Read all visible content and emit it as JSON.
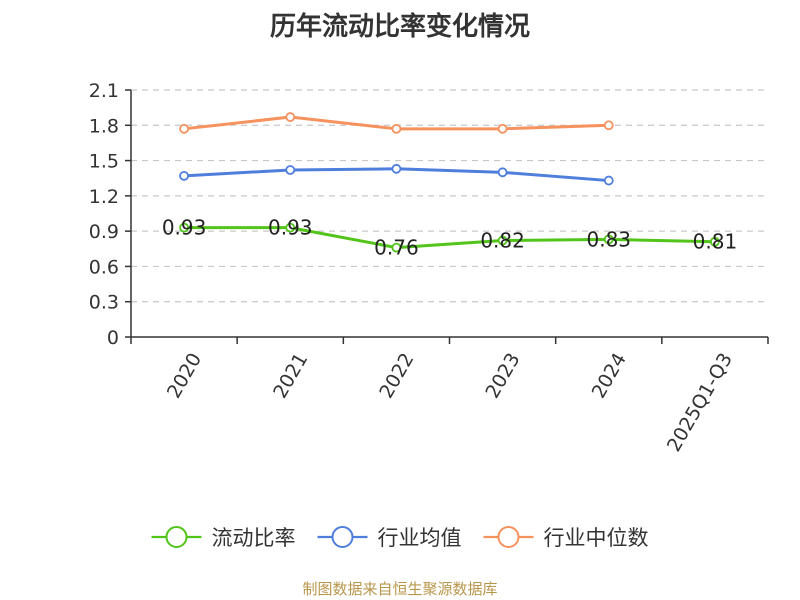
{
  "chart_data": {
    "type": "line",
    "title": "历年流动比率变化情况",
    "categories": [
      "2020",
      "2021",
      "2022",
      "2023",
      "2024",
      "2025Q1-Q3"
    ],
    "series": [
      {
        "name": "流动比率",
        "values": [
          0.93,
          0.93,
          0.76,
          0.82,
          0.83,
          0.81
        ],
        "color": "#52c41a",
        "show_labels": true
      },
      {
        "name": "行业均值",
        "values": [
          1.37,
          1.42,
          1.43,
          1.4,
          1.33,
          null
        ],
        "color": "#4f7fdc",
        "show_labels": false
      },
      {
        "name": "行业中位数",
        "values": [
          1.77,
          1.87,
          1.77,
          1.77,
          1.8,
          null
        ],
        "color": "#f5925e",
        "show_labels": false
      }
    ],
    "yticks": [
      "0",
      "0.3",
      "0.6",
      "0.9",
      "1.2",
      "1.5",
      "1.8",
      "2.1"
    ],
    "ylim": [
      0,
      2.1
    ],
    "grid": true,
    "legend_position": "bottom"
  },
  "source": "制图数据来自恒生聚源数据库"
}
